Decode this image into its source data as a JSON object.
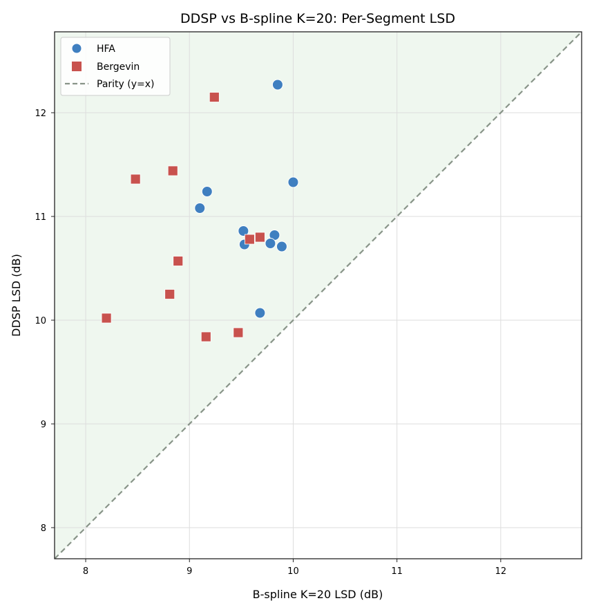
{
  "chart_data": {
    "type": "scatter",
    "title": "DDSP vs B-spline K=20: Per-Segment LSD",
    "xlabel": "B-spline K=20 LSD (dB)",
    "ylabel": "DDSP LSD (dB)",
    "xlim": [
      7.7,
      12.78
    ],
    "ylim": [
      7.7,
      12.78
    ],
    "xticks": [
      "8",
      "9",
      "10",
      "11",
      "12"
    ],
    "yticks": [
      "8",
      "9",
      "10",
      "11",
      "12"
    ],
    "grid": true,
    "legend_position": "top-left",
    "shaded_region": "above parity line (DDSP LSD > B-spline LSD)",
    "series": [
      {
        "name": "HFA",
        "marker": "circle",
        "color": "#3f7fc0",
        "points": [
          [
            9.85,
            12.27
          ],
          [
            10.0,
            11.33
          ],
          [
            9.17,
            11.24
          ],
          [
            9.1,
            11.08
          ],
          [
            9.52,
            10.86
          ],
          [
            9.82,
            10.82
          ],
          [
            9.53,
            10.73
          ],
          [
            9.78,
            10.74
          ],
          [
            9.89,
            10.71
          ],
          [
            9.68,
            10.07
          ]
        ]
      },
      {
        "name": "Bergevin",
        "marker": "square",
        "color": "#c8524e",
        "points": [
          [
            9.24,
            12.15
          ],
          [
            8.84,
            11.44
          ],
          [
            8.48,
            11.36
          ],
          [
            9.58,
            10.78
          ],
          [
            9.68,
            10.8
          ],
          [
            8.89,
            10.57
          ],
          [
            8.81,
            10.25
          ],
          [
            8.2,
            10.02
          ],
          [
            9.47,
            9.88
          ],
          [
            9.16,
            9.84
          ]
        ]
      },
      {
        "name": "Parity (y=x)",
        "marker": "dashed-line",
        "color": "#889488",
        "points": [
          [
            7.7,
            7.7
          ],
          [
            12.78,
            12.78
          ]
        ]
      }
    ]
  }
}
